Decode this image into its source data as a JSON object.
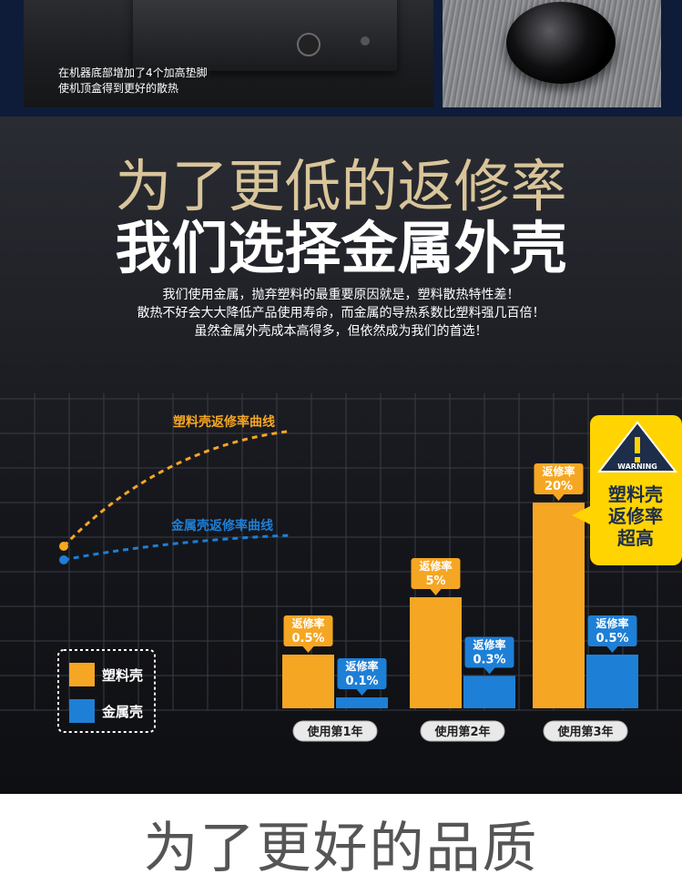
{
  "top": {
    "caption_lines": [
      "在机器底部增加了4个加高垫脚",
      "使机顶盒得到更好的散热"
    ]
  },
  "headline": {
    "line1": "为了更低的返修率",
    "line2": "我们选择金属外壳"
  },
  "description_lines": [
    "我们使用金属，抛弃塑料的最重要原因就是，塑料散热特性差！",
    "散热不好会大大降低产品使用寿命，而金属的导热系数比塑料强几百倍！",
    "虽然金属外壳成本高得多，但依然成为我们的首选！"
  ],
  "chart_data": {
    "type": "bar",
    "categories": [
      "使用第1年",
      "使用第2年",
      "使用第3年"
    ],
    "series": [
      {
        "name": "塑料壳",
        "values": [
          0.5,
          5,
          20
        ],
        "labels": [
          "返修率\n0.5%",
          "返修率\n5%",
          "返修率\n20%"
        ]
      },
      {
        "name": "金属壳",
        "values": [
          0.1,
          0.3,
          0.5
        ],
        "labels": [
          "返修率\n0.1%",
          "返修率\n0.3%",
          "返修率\n0.5%"
        ]
      }
    ],
    "curve_labels": [
      "塑料壳返修率曲线",
      "金属壳返修率曲线"
    ],
    "warning": {
      "badge": "WARNING",
      "text_lines": [
        "塑料壳",
        "返修率",
        "超高"
      ]
    },
    "colors": {
      "plastic": "#f5a623",
      "metal": "#1e7fd6",
      "warning_bg": "#ffd400",
      "grid": "#3a3d47"
    }
  },
  "bottom": {
    "title": "为了更好的品质"
  }
}
